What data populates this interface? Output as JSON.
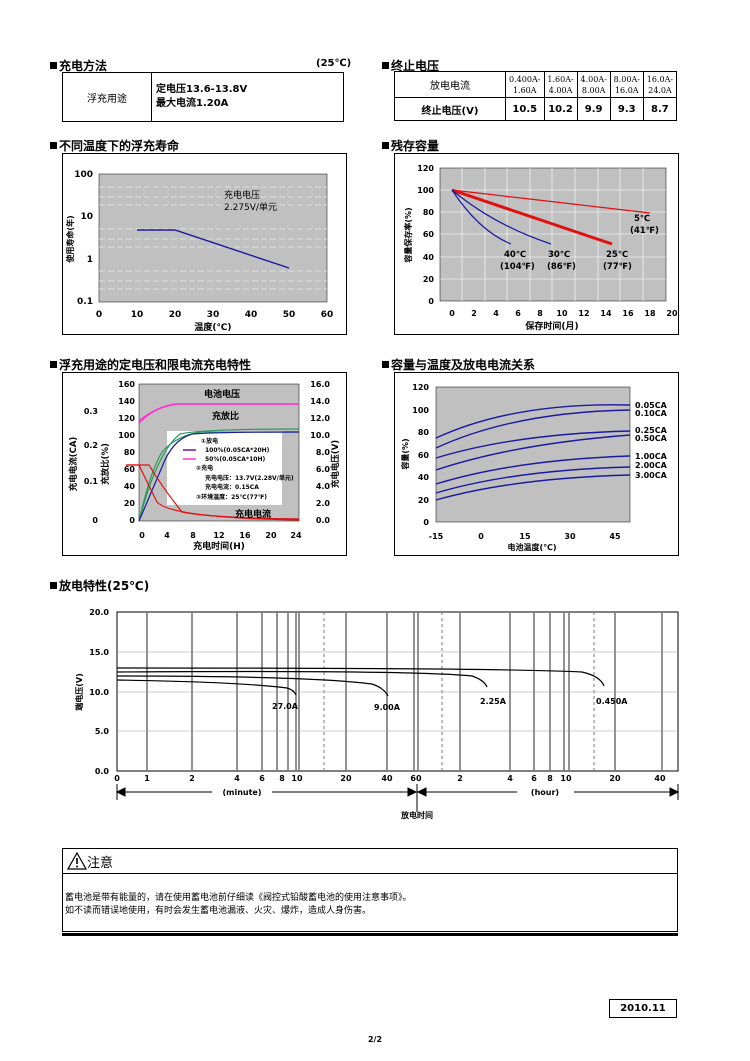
{
  "charge_method": {
    "title": "充电方法",
    "temp": "(25℃)",
    "row_label": "浮充用途",
    "line1": "定电压13.6-13.8V",
    "line2": "最大电流1.20A"
  },
  "cutoff_voltage": {
    "title": "终止电压",
    "current_label": "放电电流",
    "voltage_label": "终止电压(V)",
    "ranges": [
      [
        "0.400A-",
        "1.60A"
      ],
      [
        "1.60A-",
        "4.00A"
      ],
      [
        "4.00A-",
        "8.00A"
      ],
      [
        "8.00A-",
        "16.0A"
      ],
      [
        "16.0A-",
        "24.0A"
      ]
    ],
    "voltages": [
      "10.5",
      "10.2",
      "9.9",
      "9.3",
      "8.7"
    ]
  },
  "float_life": {
    "section_title": "不同温度下的浮充寿命",
    "annotation_1": "充电电压",
    "annotation_2": "2.275V/单元",
    "ylabel": "使用寿命(年)",
    "xlabel": "温度(℃)",
    "y_ticks": [
      "100",
      "10",
      "1",
      "0.1"
    ],
    "x_ticks": [
      "0",
      "10",
      "20",
      "30",
      "40",
      "50",
      "60"
    ],
    "colors": {
      "plot_bg": "#c0c0c0",
      "line": "#1a1aa0"
    }
  },
  "residual_capacity": {
    "section_title": "残存容量",
    "ylabel": "容量保存率(%)",
    "xlabel": "保存时间(月)",
    "y_ticks": [
      "120",
      "100",
      "80",
      "60",
      "40",
      "20",
      "0"
    ],
    "x_ticks": [
      "0",
      "2",
      "4",
      "6",
      "8",
      "10",
      "12",
      "14",
      "16",
      "18",
      "20"
    ],
    "labels": [
      {
        "t1": "5℃",
        "t2": "(41℉)"
      },
      {
        "t1": "25℃",
        "t2": "(77℉)"
      },
      {
        "t1": "30℃",
        "t2": "(86℉)"
      },
      {
        "t1": "40℃",
        "t2": "(104℉)"
      }
    ]
  },
  "charge_char": {
    "section_title": "浮充用途的定电压和限电流充电特性",
    "label_battery_voltage": "电池电压",
    "label_charge_ratio": "充放比",
    "label_charge_current": "充电电流",
    "legend_discharge": "①放电",
    "legend_100": "100%(0.05CA*20H)",
    "legend_50": "50%(0.05CA*10H)",
    "legend_charge": "②充电",
    "charge_voltage": "充电电压：13.7V(2.28V/单元)",
    "charge_current": "充电电流：0.15CA",
    "ambient": "③环境温度：25℃(77℉)",
    "xlabel": "充电时间(H)",
    "ylabel_current": "充电电流(CA)",
    "ylabel_ratio": "充放比(%)",
    "ylabel_voltage": "充电电压(V)",
    "ca_ticks": [
      "0.3",
      "0.2",
      "0.1",
      "0"
    ],
    "pct_ticks": [
      "160",
      "140",
      "120",
      "100",
      "80",
      "60",
      "40",
      "20",
      "0"
    ],
    "v_ticks": [
      "16.0",
      "14.0",
      "12.0",
      "10.0",
      "8.0",
      "6.0",
      "4.0",
      "2.0",
      "0.0"
    ],
    "x_ticks": [
      "0",
      "4",
      "8",
      "12",
      "16",
      "20",
      "24"
    ]
  },
  "capacity_temp": {
    "section_title": "容量与温度及放电电流关系",
    "ylabel": "容量(%)",
    "xlabel": "电池温度(℃)",
    "y_ticks": [
      "120",
      "100",
      "80",
      "60",
      "40",
      "20",
      "0"
    ],
    "x_ticks": [
      "-15",
      "0",
      "15",
      "30",
      "45"
    ],
    "series": [
      "0.05CA",
      "0.10CA",
      "0.25CA",
      "0.50CA",
      "1.00CA",
      "2.00CA",
      "3.00CA"
    ]
  },
  "discharge": {
    "section_title": "放电特性(25℃)",
    "ylabel": "端电压(V)",
    "y_ticks": [
      "20.0",
      "15.0",
      "10.0",
      "5.0",
      "0.0"
    ],
    "x_ticks_min": [
      "0",
      "1",
      "2",
      "4",
      "6",
      "8",
      "10"
    ],
    "x_ticks_mid": [
      "20",
      "40",
      "60"
    ],
    "x_ticks_hr": [
      "2",
      "4",
      "6",
      "8",
      "10"
    ],
    "x_ticks_hr2": [
      "20",
      "40"
    ],
    "unit_minute": "(minute)",
    "unit_hour": "(hour)",
    "xlabel": "放电时间",
    "series": [
      "27.0A",
      "9.00A",
      "2.25A",
      "0.450A"
    ]
  },
  "caution": {
    "title": "注意",
    "line1": "蓄电池是带有能量的，请在使用蓄电池前仔细读《阀控式铅酸蓄电池的使用注意事项》。",
    "line2": "如不读而错误地使用，有时会发生蓄电池漏液、火灾、爆炸，造成人身伤害。"
  },
  "footer": {
    "date": "2010.11",
    "page": "2/2"
  }
}
